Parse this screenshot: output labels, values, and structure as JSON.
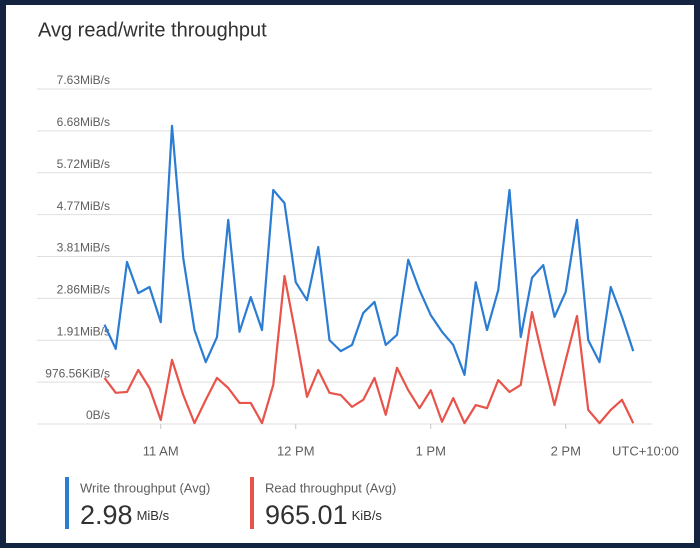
{
  "chart_data": {
    "type": "line",
    "title": "Avg read/write throughput",
    "x_label": "UTC+10:00",
    "x": [
      635,
      640,
      645,
      650,
      655,
      660,
      665,
      670,
      675,
      680,
      685,
      690,
      695,
      700,
      705,
      710,
      715,
      720,
      725,
      730,
      735,
      740,
      745,
      750,
      755,
      760,
      765,
      770,
      775,
      780,
      785,
      790,
      795,
      800,
      805,
      810,
      815,
      820,
      825,
      830,
      835,
      840,
      845,
      850,
      855,
      860,
      865,
      870
    ],
    "series": [
      {
        "name": "Write throughput (Avg)",
        "color": "#2b7cd3",
        "summary": "2.98",
        "summary_unit": "MiB/s",
        "values": [
          2.26,
          1.71,
          3.69,
          2.98,
          3.12,
          2.32,
          6.79,
          3.78,
          2.14,
          1.41,
          1.98,
          4.65,
          2.1,
          2.89,
          2.14,
          5.33,
          5.03,
          3.23,
          2.82,
          4.03,
          1.91,
          1.66,
          1.8,
          2.53,
          2.78,
          1.8,
          2.03,
          3.74,
          3.05,
          2.48,
          2.1,
          1.8,
          1.12,
          3.23,
          2.14,
          3.05,
          5.33,
          1.98,
          3.33,
          3.62,
          2.44,
          3.01,
          4.65,
          1.91,
          1.41,
          3.12,
          2.44,
          1.66
        ]
      },
      {
        "name": "Read throughput (Avg)",
        "color": "#e8534a",
        "summary": "965.01",
        "summary_unit": "KiB/s",
        "values": [
          1.05,
          0.71,
          0.73,
          1.23,
          0.82,
          0.09,
          1.46,
          0.66,
          0.02,
          0.55,
          1.05,
          0.82,
          0.48,
          0.48,
          0.02,
          0.89,
          3.37,
          2.03,
          0.62,
          1.23,
          0.71,
          0.66,
          0.39,
          0.55,
          1.05,
          0.21,
          1.28,
          0.77,
          0.36,
          0.77,
          0.05,
          0.59,
          0.02,
          0.43,
          0.36,
          1.0,
          0.73,
          0.89,
          2.55,
          1.46,
          0.43,
          1.46,
          2.46,
          0.32,
          0.02,
          0.32,
          0.55,
          0.02
        ]
      }
    ],
    "xlim": [
      633,
      873
    ],
    "xticks": [
      {
        "value": 660,
        "label": "11 AM"
      },
      {
        "value": 720,
        "label": "12 PM"
      },
      {
        "value": 780,
        "label": "1 PM"
      },
      {
        "value": 840,
        "label": "2 PM"
      }
    ],
    "ylim": [
      0,
      7.62939
    ],
    "yticks": [
      {
        "value": 0,
        "label": "0B/s"
      },
      {
        "value": 0.95367,
        "label": "976.56KiB/s"
      },
      {
        "value": 1.90735,
        "label": "1.91MiB/s"
      },
      {
        "value": 2.86102,
        "label": "2.86MiB/s"
      },
      {
        "value": 3.8147,
        "label": "3.81MiB/s"
      },
      {
        "value": 4.76837,
        "label": "4.77MiB/s"
      },
      {
        "value": 5.72205,
        "label": "5.72MiB/s"
      },
      {
        "value": 6.67572,
        "label": "6.68MiB/s"
      },
      {
        "value": 7.62939,
        "label": "7.63MiB/s"
      }
    ],
    "grid": true
  }
}
